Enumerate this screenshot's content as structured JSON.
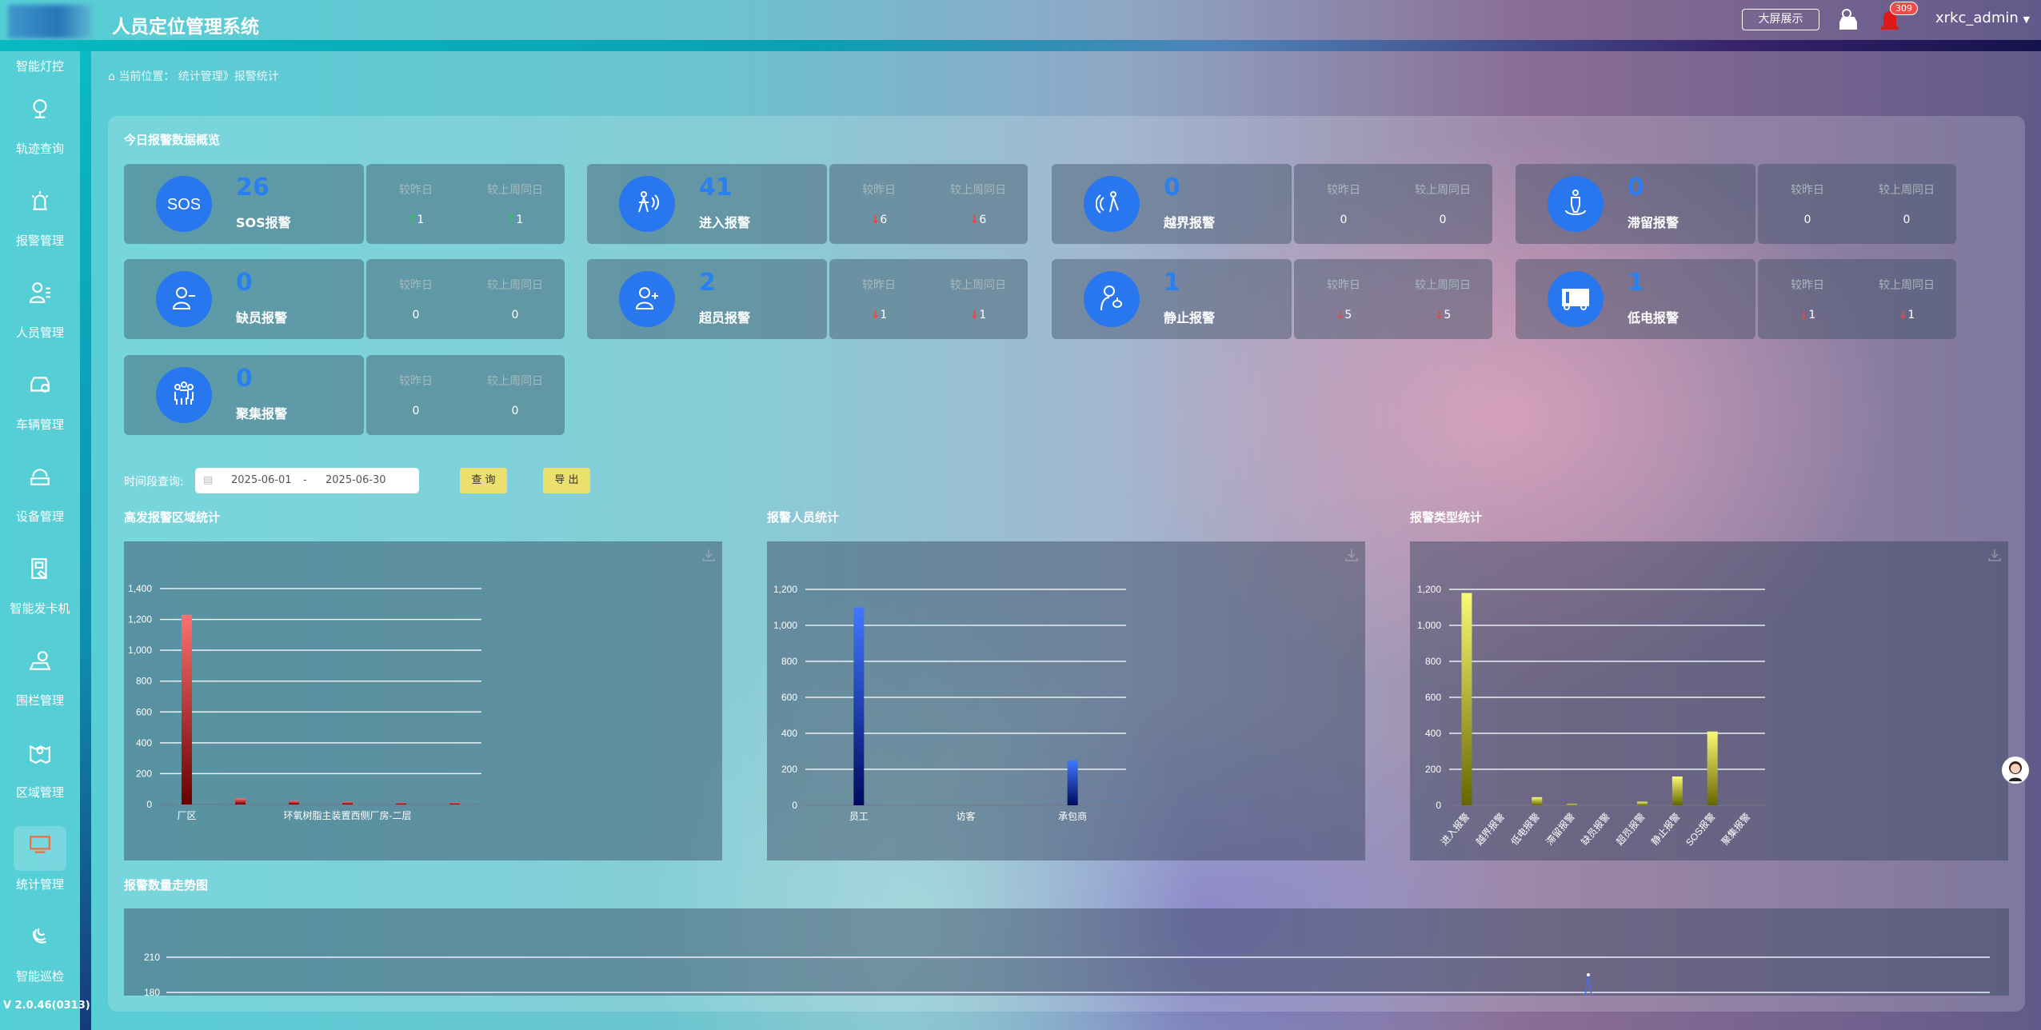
{
  "header": {
    "title": "人员定位管理系统",
    "bigscreen_label": "大屏展示",
    "alarm_badge": "309",
    "username": "xrkc_admin",
    "icons": [
      "car-icon",
      "alarm-light-icon"
    ]
  },
  "sidebar": {
    "items": [
      {
        "label": "智能灯控",
        "icon": "light-icon"
      },
      {
        "label": "轨迹查询",
        "icon": "track-icon"
      },
      {
        "label": "报警管理",
        "icon": "alarm-icon"
      },
      {
        "label": "人员管理",
        "icon": "users-icon"
      },
      {
        "label": "车辆管理",
        "icon": "vehicle-icon"
      },
      {
        "label": "设备管理",
        "icon": "device-icon"
      },
      {
        "label": "智能发卡机",
        "icon": "card-machine-icon"
      },
      {
        "label": "围栏管理",
        "icon": "fence-icon"
      },
      {
        "label": "区域管理",
        "icon": "area-icon"
      },
      {
        "label": "统计管理",
        "icon": "statistics-icon",
        "active": true
      },
      {
        "label": "智能巡检",
        "icon": "inspection-icon"
      }
    ],
    "version": "V 2.0.46(0313)"
  },
  "breadcrumb": "当前位置：  统计管理》报警统计",
  "overview": {
    "title": "今日报警数据概览",
    "compare_labels": [
      "较昨日",
      "较上周同日"
    ],
    "cards": [
      {
        "label": "SOS报警",
        "value": "26",
        "icon": "sos-icon",
        "vs_yesterday": "1",
        "vs_last_week": "1",
        "trend": "up"
      },
      {
        "label": "进入报警",
        "value": "41",
        "icon": "enter-icon",
        "vs_yesterday": "6",
        "vs_last_week": "6",
        "trend": "down"
      },
      {
        "label": "越界报警",
        "value": "0",
        "icon": "cross-border-icon",
        "vs_yesterday": "0",
        "vs_last_week": "0",
        "trend": "none"
      },
      {
        "label": "滞留报警",
        "value": "0",
        "icon": "stay-icon",
        "vs_yesterday": "0",
        "vs_last_week": "0",
        "trend": "none"
      },
      {
        "label": "缺员报警",
        "value": "0",
        "icon": "user-minus-icon",
        "vs_yesterday": "0",
        "vs_last_week": "0",
        "trend": "none"
      },
      {
        "label": "超员报警",
        "value": "2",
        "icon": "user-plus-icon",
        "vs_yesterday": "1",
        "vs_last_week": "1",
        "trend": "down"
      },
      {
        "label": "静止报警",
        "value": "1",
        "icon": "static-icon",
        "vs_yesterday": "5",
        "vs_last_week": "5",
        "trend": "down"
      },
      {
        "label": "低电报警",
        "value": "1",
        "icon": "low-battery-icon",
        "vs_yesterday": "1",
        "vs_last_week": "1",
        "trend": "down"
      },
      {
        "label": "聚集报警",
        "value": "0",
        "icon": "gather-icon",
        "vs_yesterday": "0",
        "vs_last_week": "0",
        "trend": "none"
      }
    ],
    "colors": {
      "up": "#27c63a",
      "down": "#f0443c",
      "icon_bg": "#2877ee"
    }
  },
  "query": {
    "label": "时间段查询:",
    "start": "2025-06-01",
    "sep": "-",
    "end": "2025-06-30",
    "search_label": "查 询",
    "export_label": "导 出"
  },
  "chart_titles": [
    "高发报警区域统计",
    "报警人员统计",
    "报警类型统计",
    "报警数量走势图"
  ],
  "chart_data": [
    {
      "type": "bar",
      "title": "高发报警区域统计",
      "categories": [
        "厂区",
        "",
        "",
        "环氧树脂主装置西侧厂房-二层",
        "",
        ""
      ],
      "values": [
        1230,
        40,
        25,
        18,
        12,
        12
      ],
      "ylim": [
        0,
        1400
      ],
      "yticks": [
        0,
        200,
        400,
        600,
        800,
        1000,
        1200,
        1400
      ],
      "grid": true,
      "color": [
        "#ff7070",
        "#6a0000"
      ]
    },
    {
      "type": "bar",
      "title": "报警人员统计",
      "categories": [
        "员工",
        "访客",
        "承包商"
      ],
      "values": [
        1100,
        0,
        250
      ],
      "ylim": [
        0,
        1200
      ],
      "yticks": [
        0,
        200,
        400,
        600,
        800,
        1000,
        1200
      ],
      "grid": true,
      "color": [
        "#4178ff",
        "#000a5e"
      ]
    },
    {
      "type": "bar",
      "title": "报警类型统计",
      "categories": [
        "进入报警",
        "越界报警",
        "低电报警",
        "滞留报警",
        "缺员报警",
        "超员报警",
        "静止报警",
        "SOS报警",
        "聚集报警"
      ],
      "values": [
        1180,
        0,
        45,
        8,
        0,
        20,
        160,
        410,
        0
      ],
      "ylim": [
        0,
        1200
      ],
      "yticks": [
        0,
        200,
        400,
        600,
        800,
        1000,
        1200
      ],
      "grid": true,
      "color": [
        "#f8fb74",
        "#666600"
      ]
    },
    {
      "type": "line",
      "title": "报警数量走势图",
      "yticks": [
        180,
        210
      ],
      "visible_peak": 195,
      "grid": true,
      "color": "#4a6ee0"
    }
  ]
}
